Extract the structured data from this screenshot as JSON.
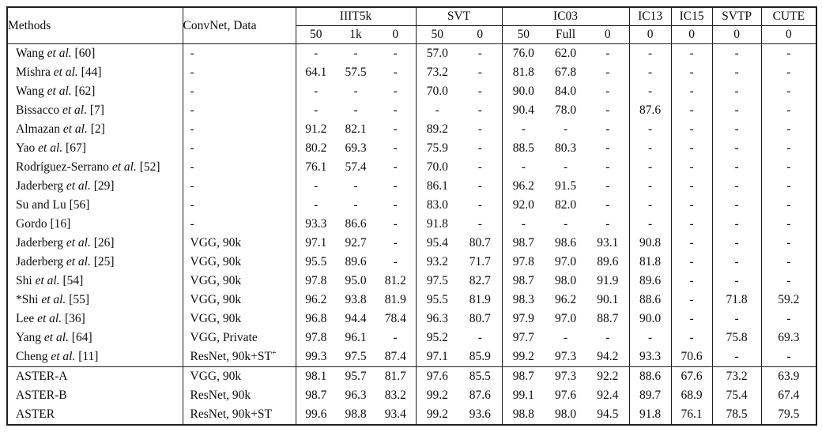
{
  "table": {
    "methods_header": "Methods",
    "convnet_header": "ConvNet, Data",
    "col_groups": [
      {
        "label": "IIIT5k",
        "subs": [
          "50",
          "1k",
          "0"
        ]
      },
      {
        "label": "SVT",
        "subs": [
          "50",
          "0"
        ]
      },
      {
        "label": "IC03",
        "subs": [
          "50",
          "Full",
          "0"
        ]
      },
      {
        "label": "IC13",
        "subs": [
          "0"
        ]
      },
      {
        "label": "IC15",
        "subs": [
          "0"
        ]
      },
      {
        "label": "SVTP",
        "subs": [
          "0"
        ]
      },
      {
        "label": "CUTE",
        "subs": [
          "0"
        ]
      }
    ],
    "rows": [
      {
        "method": [
          "Wang ",
          "et al.",
          " [60]"
        ],
        "convnet": "-",
        "values": [
          "-",
          "-",
          "-",
          "57.0",
          "-",
          "76.0",
          "62.0",
          "-",
          "-",
          "-",
          "-",
          "-"
        ],
        "bold": []
      },
      {
        "method": [
          "Mishra ",
          "et al.",
          " [44]"
        ],
        "convnet": "-",
        "values": [
          "64.1",
          "57.5",
          "-",
          "73.2",
          "-",
          "81.8",
          "67.8",
          "-",
          "-",
          "-",
          "-",
          "-"
        ],
        "bold": []
      },
      {
        "method": [
          "Wang ",
          "et al.",
          " [62]"
        ],
        "convnet": "-",
        "values": [
          "-",
          "-",
          "-",
          "70.0",
          "-",
          "90.0",
          "84.0",
          "-",
          "-",
          "-",
          "-",
          "-"
        ],
        "bold": []
      },
      {
        "method": [
          "Bissacco ",
          "et al.",
          " [7]"
        ],
        "convnet": "-",
        "values": [
          "-",
          "-",
          "-",
          "-",
          "-",
          "90.4",
          "78.0",
          "-",
          "87.6",
          "-",
          "-",
          "-"
        ],
        "bold": []
      },
      {
        "method": [
          "Almazan ",
          "et al.",
          " [2]"
        ],
        "convnet": "-",
        "values": [
          "91.2",
          "82.1",
          "-",
          "89.2",
          "-",
          "-",
          "-",
          "-",
          "-",
          "-",
          "-",
          "-"
        ],
        "bold": []
      },
      {
        "method": [
          "Yao ",
          "et al.",
          " [67]"
        ],
        "convnet": "-",
        "values": [
          "80.2",
          "69.3",
          "-",
          "75.9",
          "-",
          "88.5",
          "80.3",
          "-",
          "-",
          "-",
          "-",
          "-"
        ],
        "bold": []
      },
      {
        "method": [
          "Rodríguez-Serrano ",
          "et al.",
          " [52]"
        ],
        "convnet": "-",
        "values": [
          "76.1",
          "57.4",
          "-",
          "70.0",
          "-",
          "-",
          "-",
          "-",
          "-",
          "-",
          "-",
          "-"
        ],
        "bold": []
      },
      {
        "method": [
          "Jaderberg ",
          "et al.",
          " [29]"
        ],
        "convnet": "-",
        "values": [
          "-",
          "-",
          "-",
          "86.1",
          "-",
          "96.2",
          "91.5",
          "-",
          "-",
          "-",
          "-",
          "-"
        ],
        "bold": []
      },
      {
        "method": [
          "Su and Lu [56]",
          "",
          ""
        ],
        "convnet": "-",
        "values": [
          "-",
          "-",
          "-",
          "83.0",
          "-",
          "92.0",
          "82.0",
          "-",
          "-",
          "-",
          "-",
          "-"
        ],
        "bold": []
      },
      {
        "method": [
          "Gordo [16]",
          "",
          ""
        ],
        "convnet": "-",
        "values": [
          "93.3",
          "86.6",
          "-",
          "91.8",
          "-",
          "-",
          "-",
          "-",
          "-",
          "-",
          "-",
          "-"
        ],
        "bold": []
      },
      {
        "method": [
          "Jaderberg ",
          "et al.",
          " [26]"
        ],
        "convnet": "VGG, 90k",
        "values": [
          "97.1",
          "92.7",
          "-",
          "95.4",
          "80.7",
          "98.7",
          "98.6",
          "93.1",
          "90.8",
          "-",
          "-",
          "-"
        ],
        "bold": [
          6
        ]
      },
      {
        "method": [
          "Jaderberg ",
          "et al.",
          " [25]"
        ],
        "convnet": "VGG, 90k",
        "values": [
          "95.5",
          "89.6",
          "-",
          "93.2",
          "71.7",
          "97.8",
          "97.0",
          "89.6",
          "81.8",
          "-",
          "-",
          "-"
        ],
        "bold": []
      },
      {
        "method": [
          "Shi ",
          "et al.",
          " [54]"
        ],
        "convnet": "VGG, 90k",
        "values": [
          "97.8",
          "95.0",
          "81.2",
          "97.5",
          "82.7",
          "98.7",
          "98.0",
          "91.9",
          "89.6",
          "-",
          "-",
          "-"
        ],
        "bold": []
      },
      {
        "method": [
          "*Shi ",
          "et al.",
          " [55]"
        ],
        "convnet": "VGG, 90k",
        "values": [
          "96.2",
          "93.8",
          "81.9",
          "95.5",
          "81.9",
          "98.3",
          "96.2",
          "90.1",
          "88.6",
          "-",
          "71.8",
          "59.2"
        ],
        "bold": []
      },
      {
        "method": [
          "Lee ",
          "et al.",
          " [36]"
        ],
        "convnet": "VGG, 90k",
        "values": [
          "96.8",
          "94.4",
          "78.4",
          "96.3",
          "80.7",
          "97.9",
          "97.0",
          "88.7",
          "90.0",
          "-",
          "-",
          "-"
        ],
        "bold": []
      },
      {
        "method": [
          "Yang ",
          "et al.",
          " [64]"
        ],
        "convnet": "VGG, Private",
        "values": [
          "97.8",
          "96.1",
          "-",
          "95.2",
          "-",
          "97.7",
          "-",
          "-",
          "-",
          "-",
          "75.8",
          "69.3"
        ],
        "bold": []
      },
      {
        "method": [
          "Cheng ",
          "et al.",
          " [11]"
        ],
        "convnet": "ResNet, 90k+ST",
        "convnet_sup": "+",
        "values": [
          "99.3",
          "97.5",
          "87.4",
          "97.1",
          "85.9",
          "99.2",
          "97.3",
          "94.2",
          "93.3",
          "70.6",
          "-",
          "-"
        ],
        "bold": [
          5,
          8
        ]
      },
      {
        "method": [
          "ASTER-A",
          "",
          ""
        ],
        "convnet": "VGG, 90k",
        "section_start": true,
        "values": [
          "98.1",
          "95.7",
          "81.7",
          "97.6",
          "85.5",
          "98.7",
          "97.3",
          "92.2",
          "88.6",
          "67.6",
          "73.2",
          "63.9"
        ],
        "bold": []
      },
      {
        "method": [
          "ASTER-B",
          "",
          ""
        ],
        "convnet": "ResNet, 90k",
        "values": [
          "98.7",
          "96.3",
          "83.2",
          "99.2",
          "87.6",
          "99.1",
          "97.6",
          "92.4",
          "89.7",
          "68.9",
          "75.4",
          "67.4"
        ],
        "bold": [
          3
        ]
      },
      {
        "method": [
          "ASTER",
          "",
          ""
        ],
        "convnet": "ResNet, 90k+ST",
        "values": [
          "99.6",
          "98.8",
          "93.4",
          "99.2",
          "93.6",
          "98.8",
          "98.0",
          "94.5",
          "91.8",
          "76.1",
          "78.5",
          "79.5"
        ],
        "bold": [
          0,
          1,
          2,
          3,
          4,
          7,
          9,
          10,
          11
        ]
      }
    ]
  }
}
